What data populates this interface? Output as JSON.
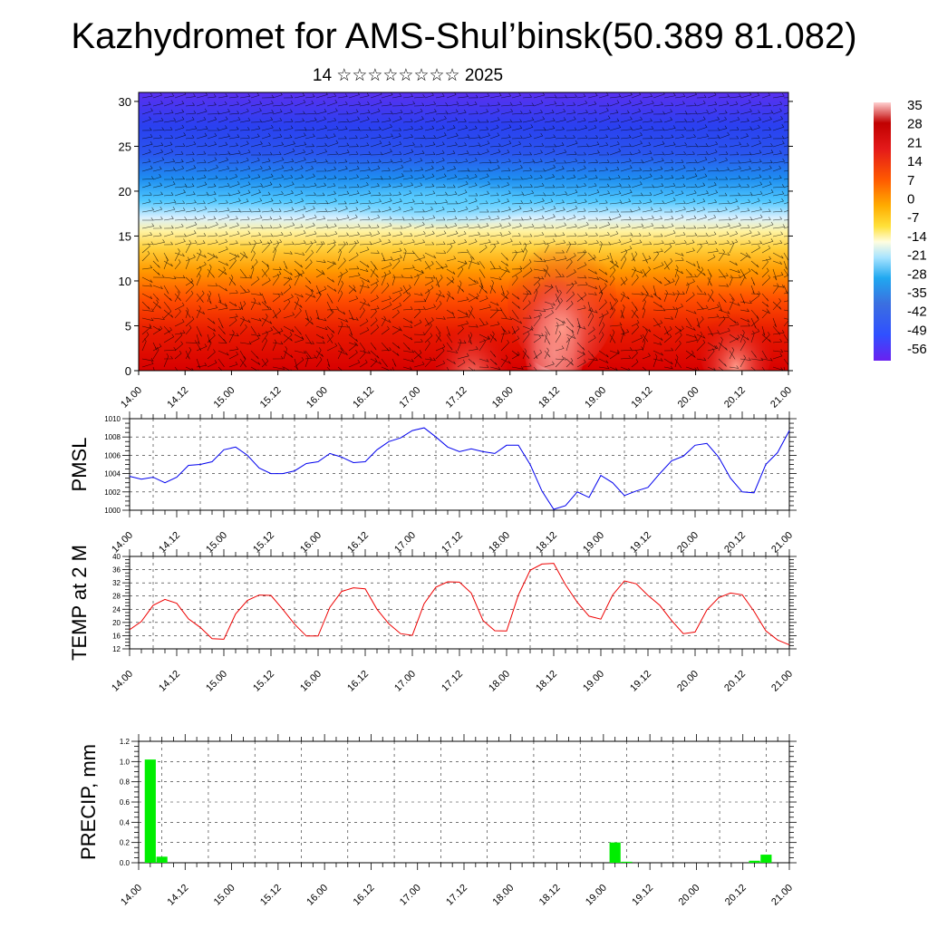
{
  "title": "Kazhydromet for AMS-Shul’binsk(50.389 81.082)",
  "subtitle": "14 ☆☆☆☆☆☆☆☆ 2025",
  "x_tick_labels": [
    "14.00",
    "14.12",
    "15.00",
    "15.12",
    "16.00",
    "16.12",
    "17.00",
    "17.12",
    "18.00",
    "18.12",
    "19.00",
    "19.12",
    "20.00",
    "20.12",
    "21.00"
  ],
  "colorbar": {
    "labels": [
      "35",
      "28",
      "21",
      "14",
      "7",
      "0",
      "-7",
      "-14",
      "-21",
      "-28",
      "-35",
      "-42",
      "-49",
      "-56"
    ]
  },
  "chart_data": [
    {
      "type": "heatmap",
      "name": "cross-section",
      "x_ticks": [
        "14.00",
        "14.12",
        "15.00",
        "15.12",
        "16.00",
        "16.12",
        "17.00",
        "17.12",
        "18.00",
        "18.12",
        "19.00",
        "19.12",
        "20.00",
        "20.12",
        "21.00"
      ],
      "y_ticks": [
        0,
        5,
        10,
        15,
        20,
        25,
        30
      ],
      "ylim": [
        0,
        31
      ],
      "colors": {
        "hot": "#d11",
        "warm": "#ff8000",
        "mild": "#ffe04a",
        "cool": "#30c0ff",
        "cold": "#2050ff",
        "coldest": "#7a30ff"
      },
      "overlay": "wind barbs"
    },
    {
      "type": "line",
      "name": "pmsl",
      "ylabel": "PMSL",
      "ylim": [
        1000,
        1010
      ],
      "y_ticks": [
        1000,
        1002,
        1004,
        1006,
        1008,
        1010
      ],
      "xlim": [
        0,
        56
      ],
      "color": "#0000ee",
      "x": [
        0,
        1,
        2,
        3,
        4,
        5,
        6,
        7,
        8,
        9,
        10,
        11,
        12,
        13,
        14,
        15,
        16,
        17,
        18,
        19,
        20,
        21,
        22,
        23,
        24,
        25,
        26,
        27,
        28,
        29,
        30,
        31,
        32,
        33,
        34,
        35,
        36,
        37,
        38,
        39,
        40,
        41,
        42,
        43,
        44,
        45,
        46,
        47,
        48,
        49,
        50,
        51,
        52,
        53,
        54,
        55,
        56
      ],
      "values": [
        1003.7,
        1003.4,
        1003.6,
        1003.0,
        1003.6,
        1004.9,
        1005.0,
        1005.3,
        1006.6,
        1006.9,
        1006.0,
        1004.6,
        1004.0,
        1004.0,
        1004.3,
        1005.1,
        1005.3,
        1006.2,
        1005.8,
        1005.2,
        1005.3,
        1006.6,
        1007.5,
        1007.9,
        1008.7,
        1009.0,
        1008.0,
        1006.9,
        1006.4,
        1006.7,
        1006.4,
        1006.2,
        1007.1,
        1007.1,
        1005.0,
        1002.1,
        1000.1,
        1000.5,
        1002.0,
        1001.4,
        1003.8,
        1003.0,
        1001.6,
        1002.1,
        1002.5,
        1004.0,
        1005.4,
        1005.9,
        1007.1,
        1007.3,
        1005.8,
        1003.5,
        1002.0,
        1001.9,
        1005.0,
        1006.3,
        1008.7
      ]
    },
    {
      "type": "line",
      "name": "temp",
      "ylabel": "TEMP at 2 M",
      "ylim": [
        12,
        40
      ],
      "y_ticks": [
        12,
        16,
        20,
        24,
        28,
        32,
        36,
        40
      ],
      "xlim": [
        0,
        56
      ],
      "color": "#ee0000",
      "x": [
        0,
        1,
        2,
        3,
        4,
        5,
        6,
        7,
        8,
        9,
        10,
        11,
        12,
        13,
        14,
        15,
        16,
        17,
        18,
        19,
        20,
        21,
        22,
        23,
        24,
        25,
        26,
        27,
        28,
        29,
        30,
        31,
        32,
        33,
        34,
        35,
        36,
        37,
        38,
        39,
        40,
        41,
        42,
        43,
        44,
        45,
        46,
        47,
        48,
        49,
        50,
        51,
        52,
        53,
        54,
        55,
        56
      ],
      "values": [
        17.8,
        20.3,
        25.2,
        27.0,
        25.8,
        21.1,
        18.5,
        15.1,
        14.9,
        22.6,
        26.7,
        28.3,
        28.2,
        24.0,
        19.5,
        15.9,
        15.9,
        24.6,
        29.4,
        30.5,
        30.2,
        24.0,
        19.6,
        16.6,
        16.1,
        25.7,
        30.7,
        32.3,
        32.2,
        28.9,
        20.6,
        17.5,
        17.4,
        28.3,
        35.8,
        37.7,
        37.9,
        31.4,
        26.1,
        21.9,
        21.0,
        28.3,
        32.6,
        31.7,
        28.2,
        25.2,
        20.6,
        16.6,
        17.1,
        23.8,
        27.5,
        28.9,
        28.4,
        23.4,
        17.5,
        14.7,
        13.2
      ]
    },
    {
      "type": "bar",
      "name": "precip",
      "ylabel": "PRECIP, mm",
      "ylim": [
        0,
        1.2
      ],
      "y_ticks": [
        "0.0",
        "0.2",
        "0.4",
        "0.6",
        "0.8",
        "1.0",
        "1.2"
      ],
      "xlim": [
        0,
        56
      ],
      "color": "#00ee00",
      "x": [
        1,
        2,
        41,
        42,
        53,
        54
      ],
      "values": [
        1.02,
        0.06,
        0.2,
        0.01,
        0.02,
        0.08
      ]
    }
  ]
}
